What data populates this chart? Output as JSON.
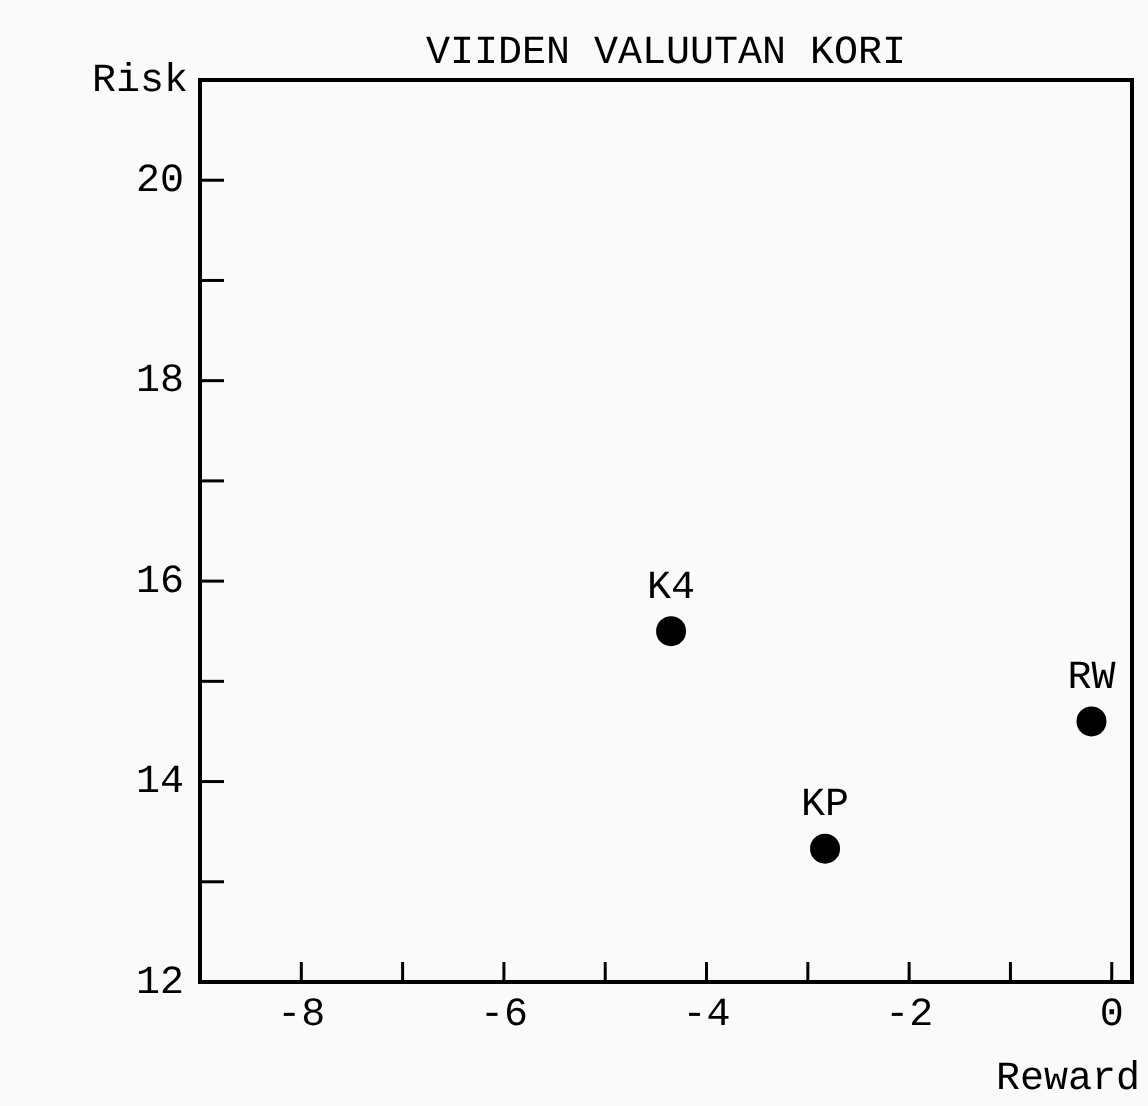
{
  "chart_data": {
    "type": "scatter",
    "title": "VIIDEN VALUUTAN KORI",
    "xlabel": "Reward",
    "ylabel": "Risk",
    "x": [
      -4.35,
      -2.83,
      -0.2
    ],
    "values": [
      15.5,
      13.33,
      14.6
    ],
    "color": "#000000",
    "marker": "circle",
    "annotations": [
      {
        "text": "K4",
        "x": -4.35,
        "y": 15.5
      },
      {
        "text": "KP",
        "x": -2.83,
        "y": 13.33
      },
      {
        "text": "RW",
        "x": -0.2,
        "y": 14.6
      }
    ],
    "xlim": [
      -9,
      0.2
    ],
    "ylim": [
      12,
      21
    ],
    "xticks": [
      -8,
      {
        "value": -7,
        "label": null
      },
      -6,
      {
        "value": -5,
        "label": null
      },
      -4,
      {
        "value": -3,
        "label": null
      },
      -2,
      {
        "value": -1,
        "label": null
      },
      0
    ],
    "yticks": [
      12,
      {
        "value": 13,
        "label": null
      },
      14,
      {
        "value": 15,
        "label": null
      },
      16,
      {
        "value": 17,
        "label": null
      },
      18,
      {
        "value": 19,
        "label": null
      },
      20
    ]
  }
}
